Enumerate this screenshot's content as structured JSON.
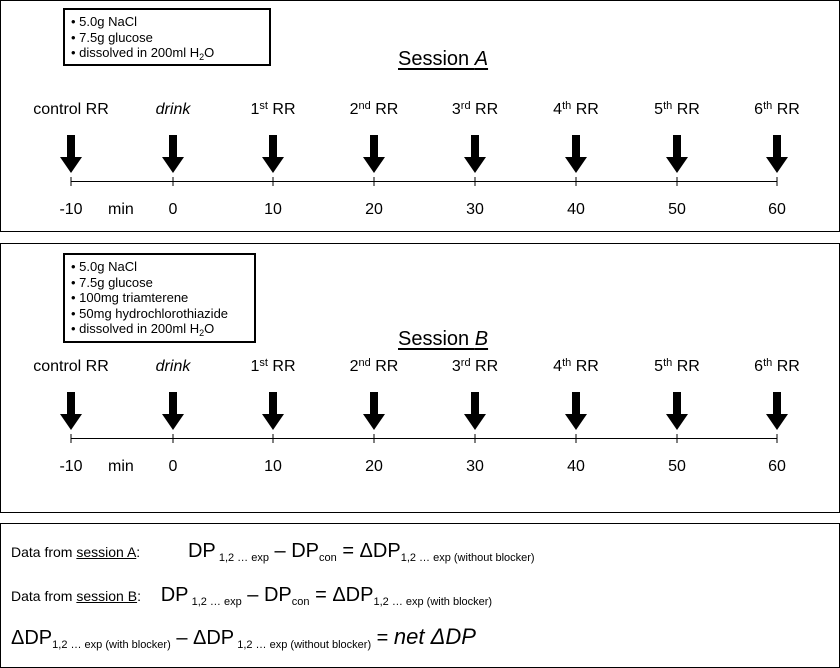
{
  "sessions": [
    {
      "title_prefix": "Session ",
      "title_letter": "A",
      "ingredients": [
        "• 5.0g NaCl",
        "• 7.5g glucose"
      ],
      "dissolved_prefix": "• dissolved in 200ml H",
      "dissolved_sub": "2",
      "dissolved_suffix": "O"
    },
    {
      "title_prefix": "Session ",
      "title_letter": "B",
      "ingredients": [
        "• 5.0g NaCl",
        "• 7.5g glucose",
        "• 100mg triamterene",
        "• 50mg hydrochlorothiazide"
      ],
      "dissolved_prefix": "• dissolved in 200ml H",
      "dissolved_sub": "2",
      "dissolved_suffix": "O"
    }
  ],
  "events": [
    {
      "main": "control RR",
      "sup": "",
      "after": "",
      "italic": false
    },
    {
      "main": "drink",
      "sup": "",
      "after": "",
      "italic": true
    },
    {
      "main": "1",
      "sup": "st",
      "after": " RR",
      "italic": false
    },
    {
      "main": "2",
      "sup": "nd",
      "after": " RR",
      "italic": false
    },
    {
      "main": "3",
      "sup": "rd",
      "after": " RR",
      "italic": false
    },
    {
      "main": "4",
      "sup": "th",
      "after": " RR",
      "italic": false
    },
    {
      "main": "5",
      "sup": "th",
      "after": " RR",
      "italic": false
    },
    {
      "main": "6",
      "sup": "th",
      "after": " RR",
      "italic": false
    }
  ],
  "timepoints": [
    "-10",
    "0",
    "10",
    "20",
    "30",
    "40",
    "50",
    "60"
  ],
  "time_unit": "min",
  "equations": {
    "a": {
      "lead": "Data from ",
      "session": "session A",
      "colon": ":",
      "dp": "DP",
      "sub_exp": " 1,2 … exp",
      "minus": " – ",
      "dp2": "DP",
      "sub_con": "con",
      "eq": " = ΔDP",
      "sub_result": "1,2 … exp (without blocker)"
    },
    "b": {
      "lead": "Data from ",
      "session": "session B",
      "colon": ":",
      "dp": "DP",
      "sub_exp": " 1,2 … exp",
      "minus": " – ",
      "dp2": "DP",
      "sub_con": "con",
      "eq": " = ΔDP",
      "sub_result": "1,2 … exp (with blocker)"
    },
    "net": {
      "dp1": "ΔDP",
      "sub1": "1,2 … exp (with blocker)",
      "minus": " – ΔDP",
      "sub2": " 1,2 … exp (without blocker)",
      "eq": " = ",
      "result": "net ΔDP"
    }
  }
}
